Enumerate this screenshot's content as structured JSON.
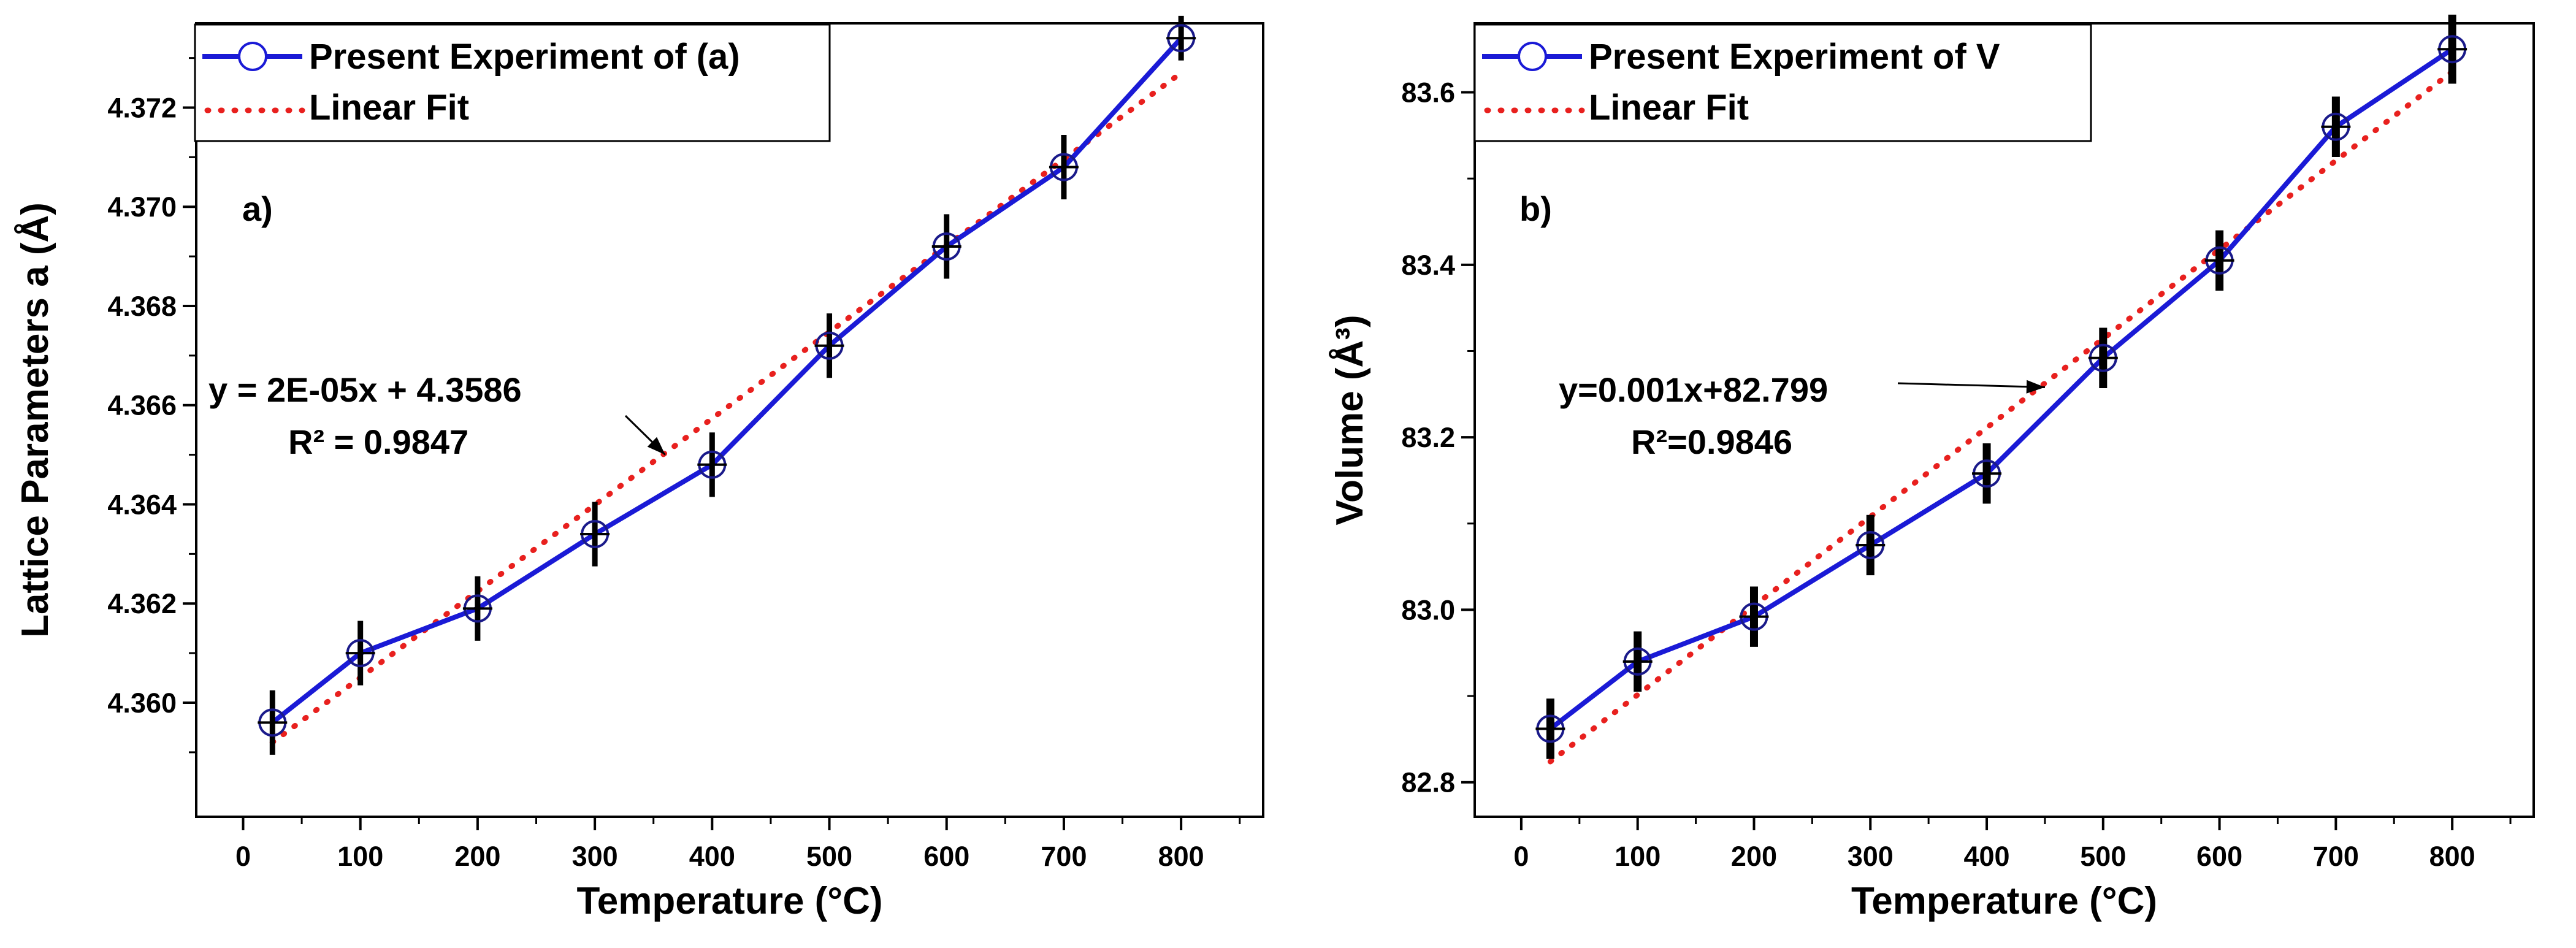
{
  "chart_data": [
    {
      "type": "line",
      "panel_label": "a)",
      "xlabel": "Temperature (°C)",
      "ylabel": "Lattice Parameters a (Å)",
      "xlim": [
        -40,
        870
      ],
      "ylim": [
        4.3577,
        4.3737
      ],
      "x_ticks": [
        0,
        100,
        200,
        300,
        400,
        500,
        600,
        700,
        800
      ],
      "y_ticks": [
        4.36,
        4.362,
        4.364,
        4.366,
        4.368,
        4.37,
        4.372
      ],
      "y_tick_labels": [
        "4.360",
        "4.362",
        "4.364",
        "4.366",
        "4.368",
        "4.370",
        "4.372"
      ],
      "series": [
        {
          "name": "Present Experiment of (a)",
          "color": "#1a1ad6",
          "marker": "open-circle",
          "x": [
            25,
            100,
            200,
            300,
            400,
            500,
            600,
            700,
            800
          ],
          "y": [
            4.3596,
            4.361,
            4.3619,
            4.3634,
            4.3648,
            4.3672,
            4.3692,
            4.3708,
            4.3734
          ],
          "error": [
            0.00065,
            0.00065,
            0.00065,
            0.00065,
            0.00065,
            0.00065,
            0.00065,
            0.00065,
            0.00045
          ]
        },
        {
          "name": "Linear Fit",
          "color": "#e8201e",
          "style": "dotted",
          "x": [
            25,
            800
          ],
          "y": [
            4.3592,
            4.3727
          ]
        }
      ],
      "annotation": {
        "equation": "y = 2E-05x + 4.3586",
        "r2": "R² = 0.9847",
        "arrow_to": [
          360,
          4.365
        ]
      }
    },
    {
      "type": "line",
      "panel_label": "b)",
      "xlabel": "Temperature (°C)",
      "ylabel": "Volume (Å³)",
      "xlim": [
        -40,
        870
      ],
      "ylim": [
        82.76,
        83.68
      ],
      "x_ticks": [
        0,
        100,
        200,
        300,
        400,
        500,
        600,
        700,
        800
      ],
      "y_ticks": [
        82.8,
        83.0,
        83.2,
        83.4,
        83.6
      ],
      "y_tick_labels": [
        "82.8",
        "83.0",
        "83.2",
        "83.4",
        "83.6"
      ],
      "series": [
        {
          "name": "Present Experiment of V",
          "color": "#1a1ad6",
          "marker": "open-circle",
          "x": [
            25,
            100,
            200,
            300,
            400,
            500,
            600,
            700,
            800
          ],
          "y": [
            82.862,
            82.94,
            82.992,
            83.075,
            83.158,
            83.292,
            83.405,
            83.56,
            83.65
          ],
          "error": [
            0.035,
            0.035,
            0.035,
            0.035,
            0.035,
            0.035,
            0.035,
            0.035,
            0.04
          ]
        },
        {
          "name": "Linear Fit",
          "color": "#e8201e",
          "style": "dotted",
          "x": [
            25,
            800
          ],
          "y": [
            82.824,
            83.624
          ]
        }
      ],
      "annotation": {
        "equation": "y=0.001x+82.799",
        "r2": "R²=0.9846",
        "arrow_to": [
          450,
          83.258
        ]
      }
    }
  ]
}
